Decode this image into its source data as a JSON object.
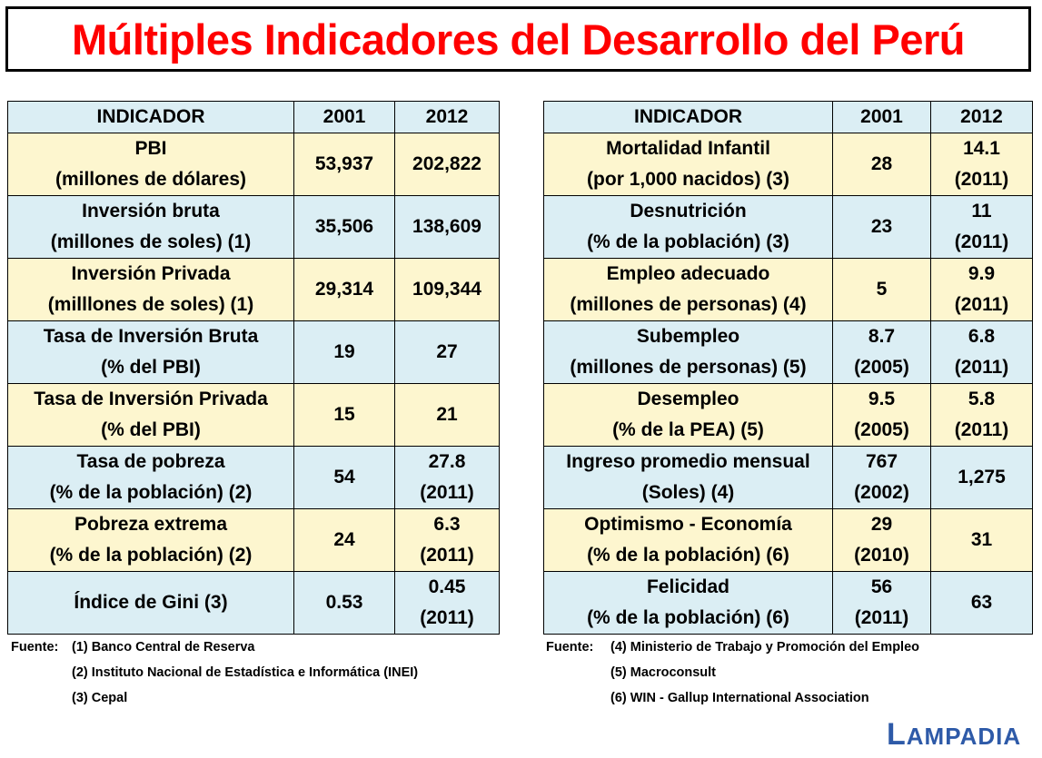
{
  "title": "Múltiples Indicadores del Desarrollo del Perú",
  "left_table": {
    "headers": [
      "INDICADOR",
      "2001",
      "2012"
    ],
    "rows": [
      {
        "line1": "PBI",
        "line2": "(millones de dólares)",
        "v2001": "53,937",
        "v2001_note": "",
        "v2012": "202,822",
        "v2012_note": ""
      },
      {
        "line1": "Inversión bruta",
        "line2": "(millones de soles) (1)",
        "v2001": "35,506",
        "v2001_note": "",
        "v2012": "138,609",
        "v2012_note": ""
      },
      {
        "line1": "Inversión Privada",
        "line2": "(milllones de soles) (1)",
        "v2001": "29,314",
        "v2001_note": "",
        "v2012": "109,344",
        "v2012_note": ""
      },
      {
        "line1": "Tasa de Inversión Bruta",
        "line2": "(% del PBI)",
        "v2001": "19",
        "v2001_note": "",
        "v2012": "27",
        "v2012_note": ""
      },
      {
        "line1": "Tasa de Inversión Privada",
        "line2": "(% del PBI)",
        "v2001": "15",
        "v2001_note": "",
        "v2012": "21",
        "v2012_note": ""
      },
      {
        "line1": "Tasa de pobreza",
        "line2": "(% de la población) (2)",
        "v2001": "54",
        "v2001_note": "",
        "v2012": "27.8",
        "v2012_note": "(2011)"
      },
      {
        "line1": "Pobreza extrema",
        "line2": "(% de la población) (2)",
        "v2001": "24",
        "v2001_note": "",
        "v2012": "6.3",
        "v2012_note": "(2011)"
      },
      {
        "line1": "Índice de Gini (3)",
        "line2": "",
        "v2001": "0.53",
        "v2001_note": "",
        "v2012": "0.45",
        "v2012_note": "(2011)"
      }
    ]
  },
  "right_table": {
    "headers": [
      "INDICADOR",
      "2001",
      "2012"
    ],
    "rows": [
      {
        "line1": "Mortalidad Infantil",
        "line2": "(por 1,000 nacidos) (3)",
        "v2001": "28",
        "v2001_note": "",
        "v2012": "14.1",
        "v2012_note": "(2011)"
      },
      {
        "line1": "Desnutrición",
        "line2": "(% de la población) (3)",
        "v2001": "23",
        "v2001_note": "",
        "v2012": "11",
        "v2012_note": "(2011)"
      },
      {
        "line1": "Empleo adecuado",
        "line2": "(millones de personas) (4)",
        "v2001": "5",
        "v2001_note": "",
        "v2012": "9.9",
        "v2012_note": "(2011)"
      },
      {
        "line1": "Subempleo",
        "line2": "(millones de personas) (5)",
        "v2001": "8.7",
        "v2001_note": "(2005)",
        "v2012": "6.8",
        "v2012_note": "(2011)"
      },
      {
        "line1": "Desempleo",
        "line2": "(% de la PEA) (5)",
        "v2001": "9.5",
        "v2001_note": "(2005)",
        "v2012": "5.8",
        "v2012_note": "(2011)"
      },
      {
        "line1": "Ingreso promedio mensual",
        "line2": "(Soles) (4)",
        "v2001": "767",
        "v2001_note": "(2002)",
        "v2012": "1,275",
        "v2012_note": ""
      },
      {
        "line1": "Optimismo - Economía",
        "line2": "(% de la población) (6)",
        "v2001": "29",
        "v2001_note": "(2010)",
        "v2012": "31",
        "v2012_note": ""
      },
      {
        "line1": "Felicidad",
        "line2": "(% de la población) (6)",
        "v2001": "56",
        "v2001_note": "(2011)",
        "v2012": "63",
        "v2012_note": ""
      }
    ]
  },
  "sources_left": {
    "label": "Fuente:",
    "items": [
      "(1) Banco Central de Reserva",
      "(2) Instituto Nacional de Estadística e Informática (INEI)",
      "(3) Cepal"
    ]
  },
  "sources_right": {
    "label": "Fuente:",
    "items": [
      "(4) Ministerio de Trabajo y Promoción del Empleo",
      "(5) Macroconsult",
      "(6) WIN - Gallup International Association"
    ]
  },
  "logo": {
    "first": "L",
    "rest": "AMPADIA"
  },
  "colors": {
    "title": "#ff0000",
    "row_blue": "#dbeef4",
    "row_yellow": "#fdf6cf",
    "logo": "#2e5aa8"
  }
}
